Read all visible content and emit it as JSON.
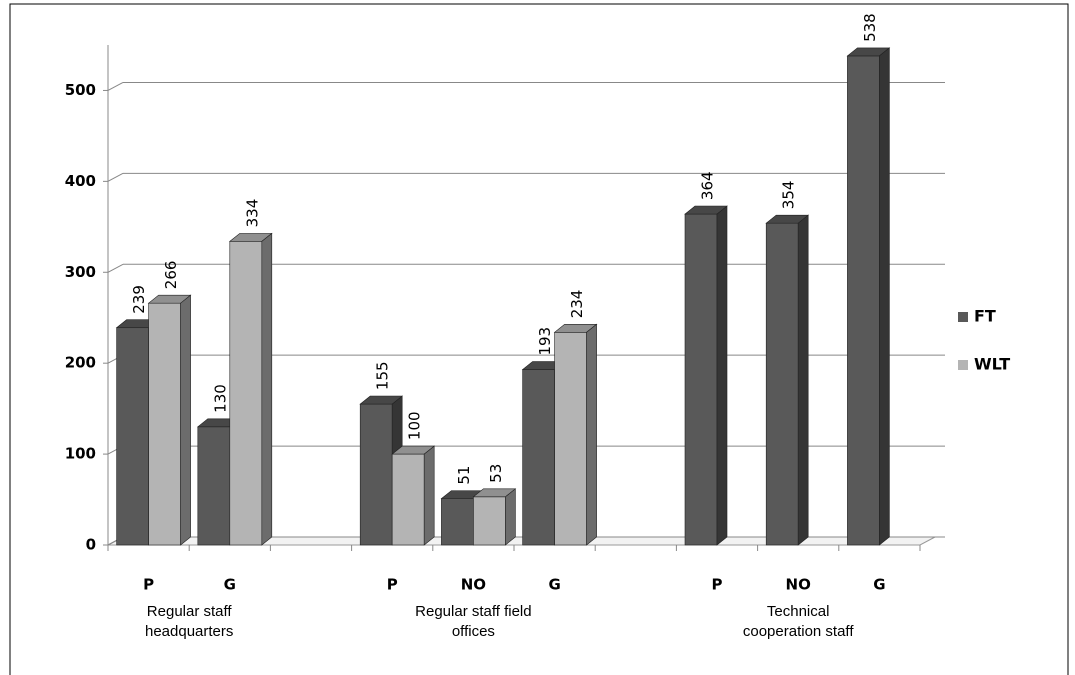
{
  "chart_data": {
    "type": "bar3d",
    "categories": [
      "P",
      "G",
      null,
      "P",
      "NO",
      "G",
      null,
      "P",
      "NO",
      "G"
    ],
    "group_labels": [
      "Regular staff headquarters",
      "Regular staff field offices",
      "Technical cooperation staff"
    ],
    "series": [
      {
        "name": "FT",
        "color": "#595959",
        "values": [
          239,
          130,
          null,
          155,
          51,
          193,
          null,
          364,
          354,
          538
        ]
      },
      {
        "name": "WLT",
        "color": "#b4b4b4",
        "values": [
          266,
          334,
          null,
          100,
          53,
          234,
          null,
          null,
          null,
          null
        ]
      }
    ],
    "ylim": [
      0,
      550
    ],
    "yticks": [
      0,
      100,
      200,
      300,
      400,
      500
    ],
    "grid": true,
    "legend": "right"
  }
}
